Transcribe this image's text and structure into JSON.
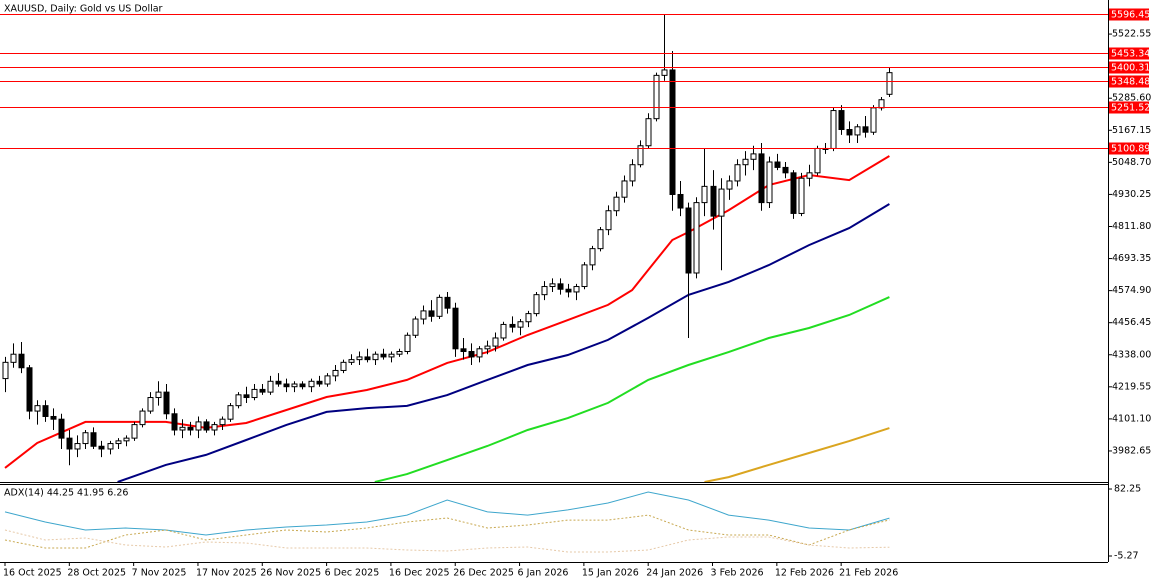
{
  "chart_data": {
    "type": "candlestick",
    "title": "XAUUSD, Daily:  Gold vs US Dollar",
    "xlim": [
      -0.622,
      137.19
    ],
    "xticks": [
      {
        "value": 0,
        "label": "16 Oct 2025"
      },
      {
        "value": 8,
        "label": "28 Oct 2025"
      },
      {
        "value": 16,
        "label": "7 Nov 2025"
      },
      {
        "value": 24,
        "label": "17 Nov 2025"
      },
      {
        "value": 32,
        "label": "26 Nov 2025"
      },
      {
        "value": 40,
        "label": "6 Dec 2025"
      },
      {
        "value": 48,
        "label": "16 Dec 2025"
      },
      {
        "value": 56,
        "label": "26 Dec 2025"
      },
      {
        "value": 64,
        "label": "6 Jan 2026"
      },
      {
        "value": 72,
        "label": "15 Jan 2026"
      },
      {
        "value": 80,
        "label": "24 Jan 2026"
      },
      {
        "value": 88,
        "label": "3 Feb 2026"
      },
      {
        "value": 96,
        "label": "12 Feb 2026"
      },
      {
        "value": 104,
        "label": "21 Feb 2026"
      }
    ],
    "ylim": [
      3868,
      5641
    ],
    "yticks": [
      5522.55,
      {
        "value": 5285.6,
        "label": "5285.60"
      },
      5167.15,
      {
        "value": 5048.7,
        "label": "5048.70"
      },
      4930.25,
      {
        "value": 4811.8,
        "label": "4811.80"
      },
      4693.35,
      {
        "value": 4574.9,
        "label": "4574.90"
      },
      4456.45,
      {
        "value": 4338,
        "label": "4338.00"
      },
      4219.55,
      {
        "value": 4101.1,
        "label": "4101.10"
      },
      3982.65
    ],
    "open": [
      4250,
      4310,
      4340,
      4290,
      4130,
      4150,
      4110,
      4100,
      4030,
      3990,
      4010,
      4050,
      4000,
      3990,
      4010,
      4020,
      4030,
      4080,
      4130,
      4180,
      4200,
      4120,
      4060,
      4070,
      4060,
      4090,
      4060,
      4080,
      4100,
      4150,
      4190,
      4180,
      4210,
      4200,
      4240,
      4230,
      4220,
      4230,
      4220,
      4240,
      4230,
      4260,
      4280,
      4310,
      4320,
      4330,
      4320,
      4340,
      4330,
      4340,
      4350,
      4410,
      4470,
      4500,
      4480,
      4550,
      4510,
      4360,
      4350,
      4330,
      4360,
      4370,
      4400,
      4450,
      4440,
      4460,
      4490,
      4560,
      4590,
      4600,
      4580,
      4570,
      4590,
      4670,
      4730,
      4800,
      4870,
      4920,
      4980,
      5040,
      5110,
      5210,
      5370,
      5390,
      4930,
      4880,
      4640,
      4900,
      4960,
      4850,
      4950,
      4980,
      5040,
      5060,
      5080,
      4900,
      5050,
      5030,
      5010,
      4860,
      4990,
      5010,
      5100,
      5100,
      5240,
      5170,
      5150,
      5180,
      5160,
      5250,
      5300
    ],
    "high": [
      4330,
      4380,
      4385,
      4300,
      4170,
      4170,
      4140,
      4120,
      4060,
      4040,
      4060,
      4070,
      4020,
      4020,
      4030,
      4040,
      4090,
      4140,
      4200,
      4240,
      4230,
      4140,
      4100,
      4090,
      4110,
      4100,
      4090,
      4110,
      4160,
      4200,
      4220,
      4230,
      4230,
      4260,
      4270,
      4250,
      4240,
      4240,
      4250,
      4260,
      4270,
      4300,
      4320,
      4340,
      4350,
      4360,
      4350,
      4360,
      4350,
      4360,
      4420,
      4480,
      4520,
      4540,
      4560,
      4570,
      4530,
      4400,
      4380,
      4370,
      4390,
      4420,
      4460,
      4480,
      4470,
      4500,
      4570,
      4610,
      4620,
      4620,
      4600,
      4600,
      4680,
      4740,
      4810,
      4890,
      4940,
      5000,
      5060,
      5130,
      5230,
      5380,
      5596,
      5460,
      4980,
      4900,
      4920,
      5100,
      5020,
      4990,
      5000,
      5060,
      5090,
      5110,
      5120,
      5070,
      5080,
      5050,
      5020,
      5010,
      5040,
      5110,
      5120,
      5250,
      5260,
      5200,
      5190,
      5220,
      5260,
      5290,
      5397
    ],
    "low": [
      4200,
      4290,
      4270,
      4100,
      4080,
      4090,
      4060,
      3990,
      3930,
      3960,
      3990,
      3990,
      3960,
      3970,
      3990,
      4000,
      4020,
      4070,
      4120,
      4150,
      4100,
      4040,
      4030,
      4040,
      4030,
      4050,
      4040,
      4060,
      4090,
      4140,
      4160,
      4170,
      4190,
      4190,
      4220,
      4200,
      4200,
      4210,
      4200,
      4220,
      4220,
      4240,
      4270,
      4300,
      4300,
      4310,
      4300,
      4320,
      4310,
      4330,
      4340,
      4400,
      4450,
      4460,
      4470,
      4490,
      4330,
      4320,
      4300,
      4310,
      4340,
      4350,
      4390,
      4420,
      4410,
      4440,
      4480,
      4540,
      4570,
      4560,
      4550,
      4540,
      4580,
      4650,
      4720,
      4780,
      4850,
      4900,
      4960,
      5030,
      5100,
      5200,
      5350,
      4870,
      4850,
      4400,
      4620,
      4850,
      4800,
      4650,
      4910,
      4960,
      5000,
      5020,
      4870,
      4880,
      5020,
      4990,
      4840,
      4850,
      4960,
      5000,
      5080,
      5090,
      5150,
      5120,
      5120,
      5140,
      5150,
      5240,
      5290
    ],
    "close": [
      4310,
      4340,
      4290,
      4130,
      4150,
      4110,
      4100,
      4030,
      3990,
      4010,
      4050,
      4000,
      3990,
      4010,
      4020,
      4030,
      4080,
      4130,
      4180,
      4200,
      4120,
      4060,
      4070,
      4060,
      4090,
      4060,
      4080,
      4100,
      4150,
      4190,
      4180,
      4210,
      4200,
      4240,
      4230,
      4220,
      4230,
      4220,
      4240,
      4230,
      4260,
      4280,
      4310,
      4320,
      4330,
      4320,
      4340,
      4330,
      4340,
      4350,
      4410,
      4470,
      4500,
      4480,
      4550,
      4510,
      4360,
      4350,
      4330,
      4360,
      4370,
      4400,
      4450,
      4440,
      4460,
      4490,
      4560,
      4590,
      4600,
      4580,
      4570,
      4590,
      4670,
      4730,
      4800,
      4870,
      4920,
      4980,
      5040,
      5110,
      5210,
      5370,
      5390,
      4930,
      4880,
      4640,
      4900,
      4960,
      4850,
      4950,
      4980,
      5040,
      5060,
      5080,
      4900,
      5050,
      5030,
      5010,
      4860,
      4990,
      5010,
      5100,
      5100,
      5240,
      5170,
      5150,
      5180,
      5160,
      5250,
      5280,
      5380
    ],
    "levels": {
      "color": "#ff0000",
      "values": [
        5596.45,
        5453.34,
        5400.31,
        5348.48,
        5251.52,
        5100.89
      ]
    },
    "moving_averages": [
      {
        "color": "#ff0000",
        "x": [
          0,
          4,
          10,
          15,
          20,
          25,
          30,
          35,
          40,
          45,
          50,
          55,
          60,
          65,
          70,
          75,
          78,
          80,
          83,
          85,
          90,
          95,
          100,
          105,
          110
        ],
        "values": [
          3920,
          4012,
          4090,
          4090,
          4090,
          4068,
          4086,
          4134,
          4182,
          4208,
          4245,
          4308,
          4348,
          4411,
          4466,
          4522,
          4577,
          4651,
          4762,
          4791,
          4872,
          4965,
          5002,
          4983,
          5072
        ]
      },
      {
        "color": "#000080",
        "x": [
          14,
          20,
          25,
          30,
          35,
          40,
          45,
          50,
          55,
          60,
          65,
          70,
          75,
          80,
          85,
          90,
          95,
          100,
          105,
          110
        ],
        "values": [
          3868,
          3931,
          3968,
          4023,
          4079,
          4127,
          4141,
          4149,
          4189,
          4245,
          4300,
          4337,
          4393,
          4474,
          4559,
          4607,
          4669,
          4743,
          4806,
          4895
        ]
      },
      {
        "color": "#22dd22",
        "x": [
          46,
          50,
          55,
          60,
          65,
          70,
          75,
          80,
          85,
          90,
          95,
          100,
          105,
          110
        ],
        "values": [
          3868,
          3897,
          3949,
          4001,
          4060,
          4104,
          4160,
          4245,
          4300,
          4348,
          4400,
          4437,
          4485,
          4551
        ]
      },
      {
        "color": "#daa520",
        "x": [
          87,
          90,
          95,
          100,
          105,
          110
        ],
        "values": [
          3868,
          3886,
          3931,
          3975,
          4019,
          4067
        ]
      }
    ],
    "indicator": {
      "title": "ADX(14) 44.25 41.95 6.26",
      "ylim": [
        -13.1,
        88.8
      ],
      "yticks": [
        82.25,
        -5.27
      ],
      "x": [
        0,
        5,
        10,
        15,
        20,
        25,
        30,
        35,
        40,
        45,
        50,
        55,
        60,
        65,
        70,
        75,
        80,
        85,
        90,
        95,
        100,
        105,
        110
      ],
      "series": [
        {
          "color": "#3ea6cc",
          "dash": false,
          "values": [
            52.3,
            39.2,
            28.7,
            31.3,
            28.7,
            22.2,
            28.7,
            32.6,
            35.2,
            39.2,
            48.2,
            67.9,
            52.3,
            48.2,
            54.9,
            64.0,
            78.3,
            67.9,
            48.2,
            41.7,
            31.3,
            28.7,
            44.25
          ]
        },
        {
          "color": "#c8a850",
          "dash": true,
          "values": [
            15.6,
            5.2,
            5.2,
            22.2,
            28.7,
            15.6,
            22.2,
            28.7,
            26.1,
            31.3,
            39.2,
            44.4,
            31.3,
            35.2,
            41.7,
            41.7,
            48.2,
            28.7,
            22.2,
            22.2,
            9.1,
            28.7,
            41.95
          ]
        },
        {
          "color": "#e6c9a8",
          "dash": true,
          "values": [
            28.7,
            15.6,
            18.3,
            9.1,
            6.5,
            13,
            11.7,
            5.2,
            5.2,
            5.2,
            2.6,
            1.3,
            5.2,
            6.5,
            0,
            0,
            2.6,
            15.6,
            19.6,
            19.6,
            9.1,
            5.2,
            6.26
          ]
        }
      ]
    }
  }
}
